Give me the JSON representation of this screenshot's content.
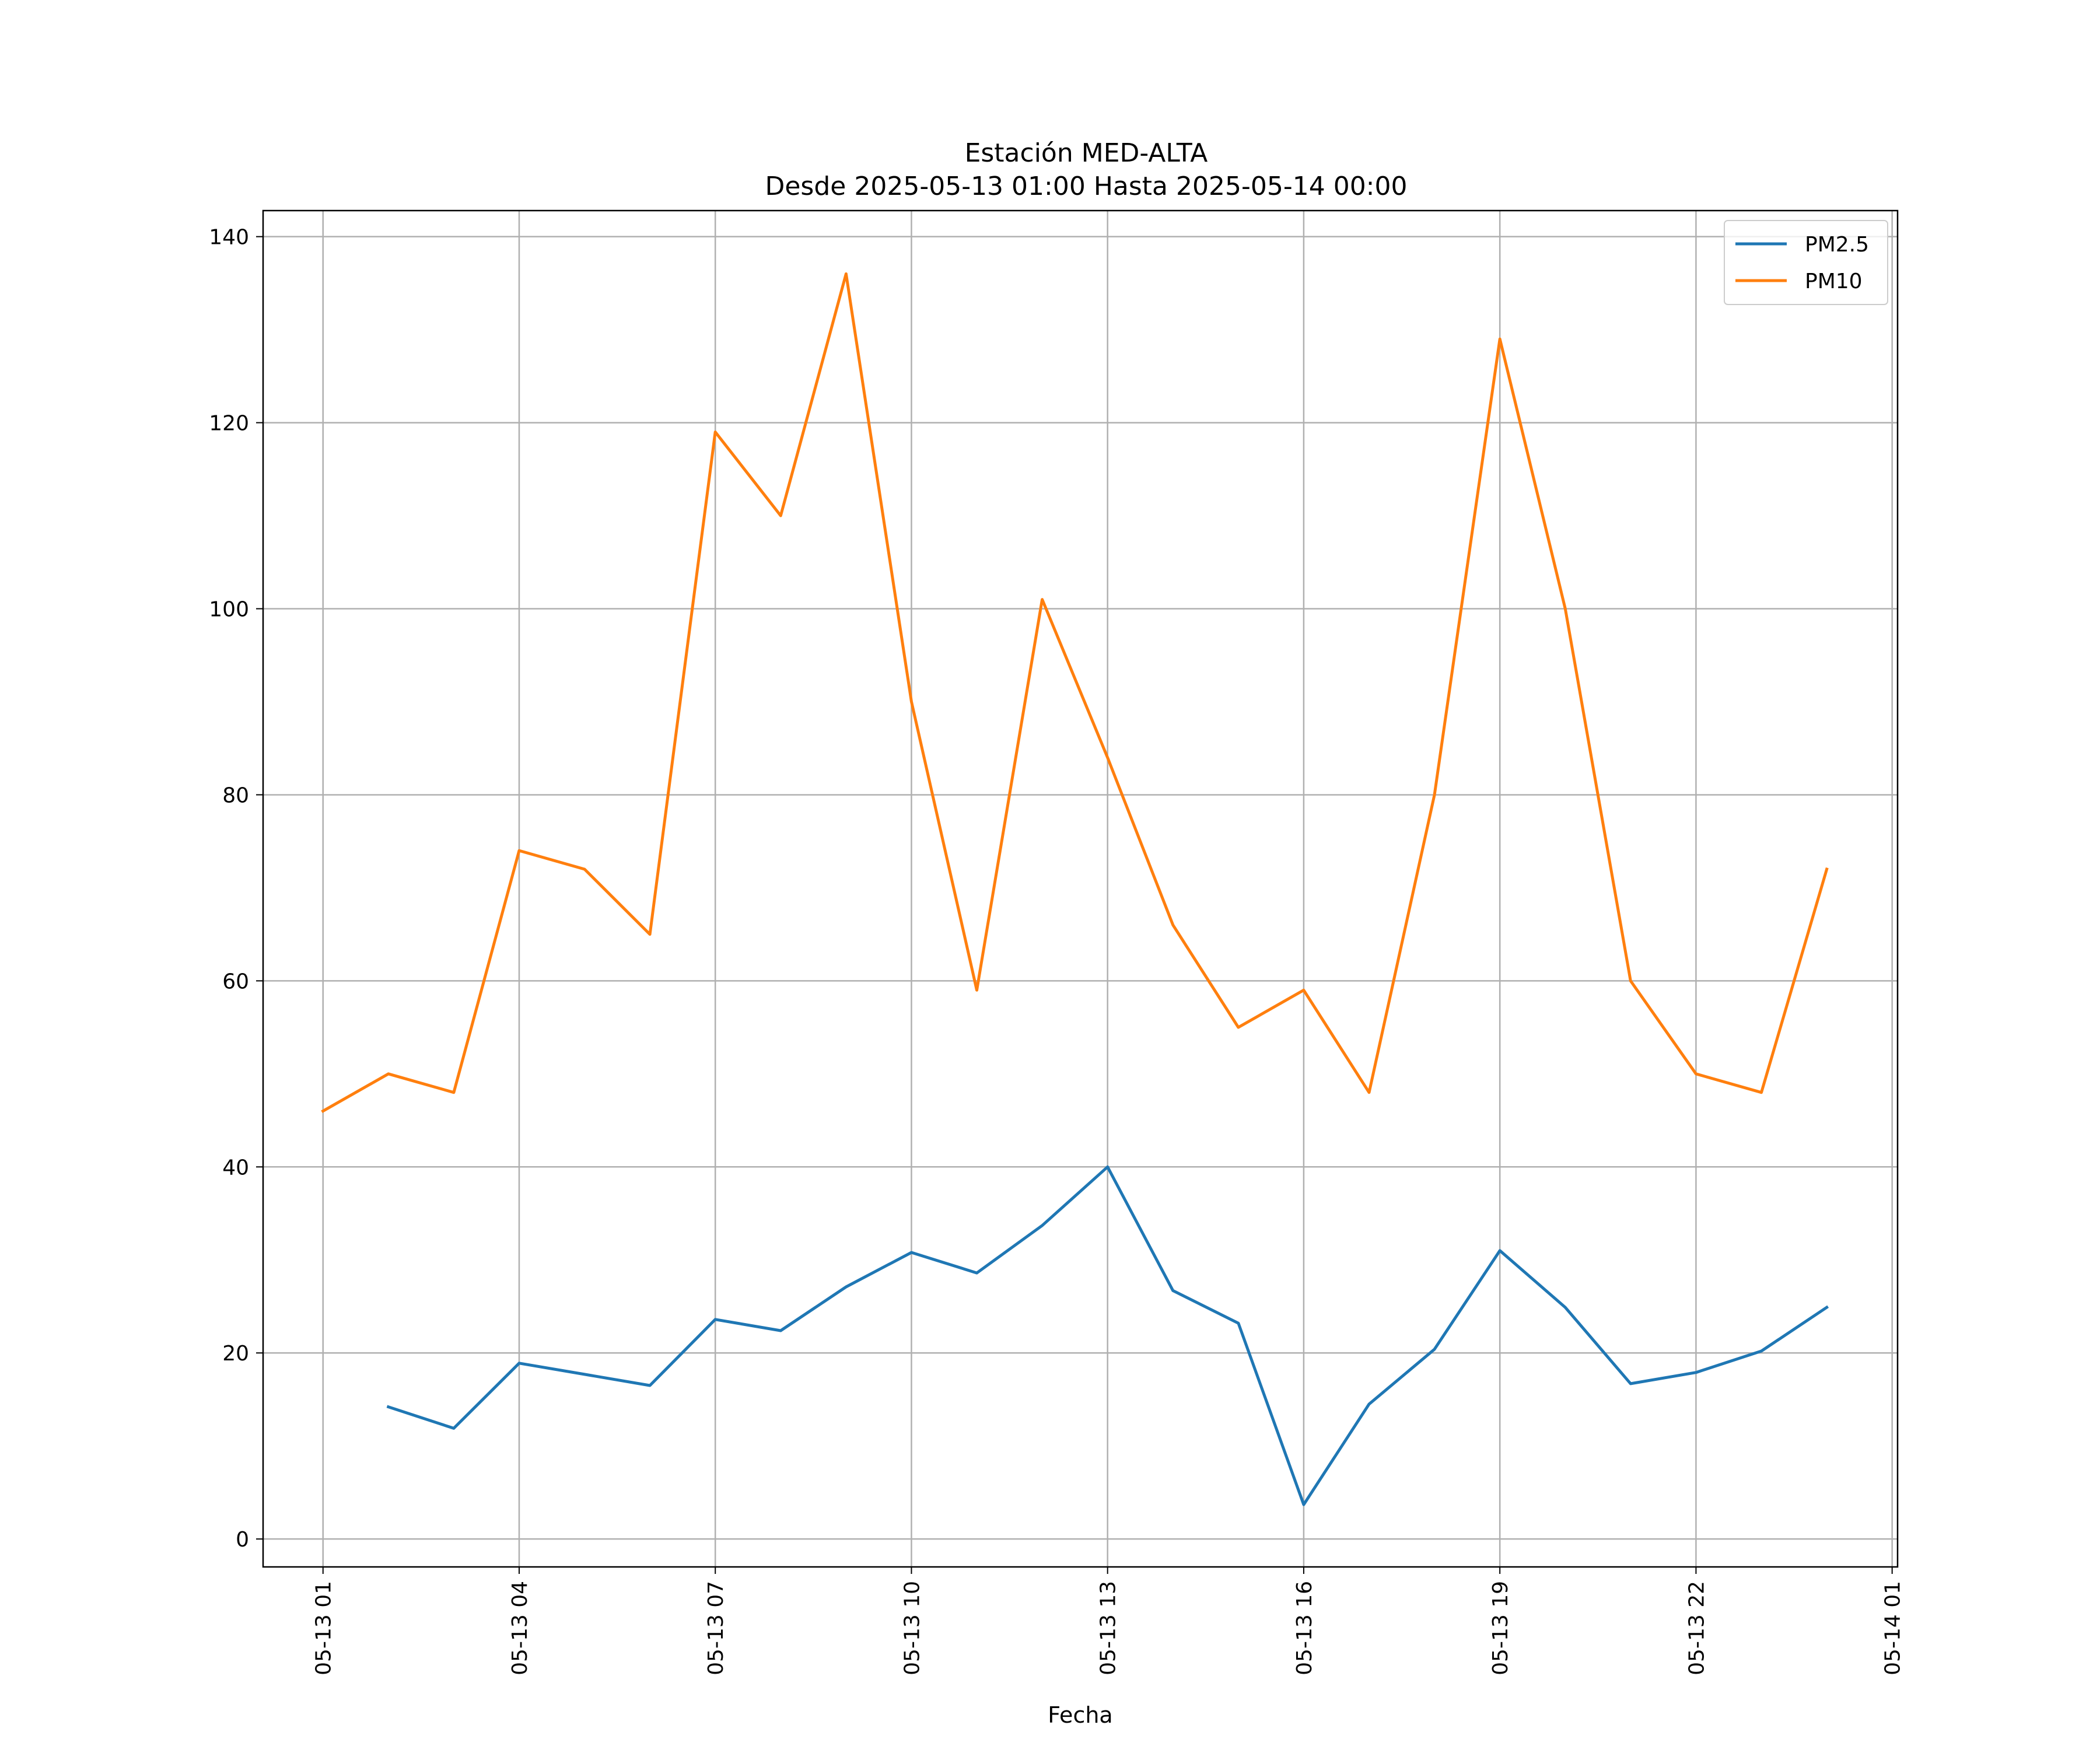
{
  "chart_data": {
    "type": "line",
    "title": "Estación MED-ALTA",
    "subtitle": "Desde 2025-05-13 01:00 Hasta 2025-05-14 00:00",
    "xlabel": "Fecha",
    "ylabel": "",
    "x": [
      "2025-05-13 01:00",
      "2025-05-13 02:00",
      "2025-05-13 03:00",
      "2025-05-13 04:00",
      "2025-05-13 05:00",
      "2025-05-13 06:00",
      "2025-05-13 07:00",
      "2025-05-13 08:00",
      "2025-05-13 09:00",
      "2025-05-13 10:00",
      "2025-05-13 11:00",
      "2025-05-13 12:00",
      "2025-05-13 13:00",
      "2025-05-13 14:00",
      "2025-05-13 15:00",
      "2025-05-13 16:00",
      "2025-05-13 17:00",
      "2025-05-13 18:00",
      "2025-05-13 19:00",
      "2025-05-13 20:00",
      "2025-05-13 21:00",
      "2025-05-13 22:00",
      "2025-05-13 23:00",
      "2025-05-14 00:00"
    ],
    "x_tick_labels": [
      {
        "at": "2025-05-13 01:00",
        "label": "05-13 01"
      },
      {
        "at": "2025-05-13 04:00",
        "label": "05-13 04"
      },
      {
        "at": "2025-05-13 07:00",
        "label": "05-13 07"
      },
      {
        "at": "2025-05-13 10:00",
        "label": "05-13 10"
      },
      {
        "at": "2025-05-13 13:00",
        "label": "05-13 13"
      },
      {
        "at": "2025-05-13 16:00",
        "label": "05-13 16"
      },
      {
        "at": "2025-05-13 19:00",
        "label": "05-13 19"
      },
      {
        "at": "2025-05-13 22:00",
        "label": "05-13 22"
      },
      {
        "at": "2025-05-14 01:00",
        "label": "05-14 01"
      }
    ],
    "xlim": [
      "2025-05-13 00:05",
      "2025-05-14 01:05"
    ],
    "ylim": [
      -3,
      142.8
    ],
    "y_ticks": [
      0,
      20,
      40,
      60,
      80,
      100,
      120,
      140
    ],
    "grid": true,
    "legend_position": "top-right",
    "series": [
      {
        "name": "PM2.5",
        "color": "#1f77b4",
        "values": [
          null,
          14.2,
          11.9,
          18.9,
          17.7,
          16.5,
          23.6,
          22.4,
          27.1,
          30.8,
          28.6,
          33.7,
          40.0,
          26.7,
          23.2,
          3.7,
          14.5,
          20.4,
          31.0,
          24.9,
          16.7,
          17.9,
          20.2,
          24.9
        ]
      },
      {
        "name": "PM10",
        "color": "#ff7f0e",
        "values": [
          46,
          50,
          48,
          74,
          72,
          65,
          119,
          110,
          136,
          90,
          59,
          101,
          84,
          66,
          55,
          59,
          48,
          80,
          129,
          100,
          60,
          50,
          48,
          72
        ]
      }
    ]
  }
}
